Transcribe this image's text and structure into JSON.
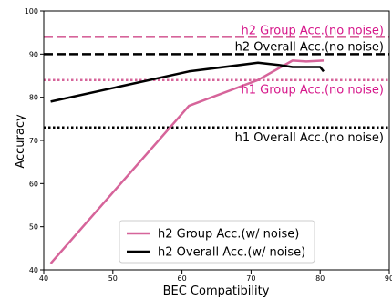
{
  "chart_data": {
    "type": "line",
    "xlabel": "BEC Compatibility",
    "ylabel": "Accuracy",
    "xlim": [
      40,
      90
    ],
    "ylim": [
      40,
      100
    ],
    "xticks": [
      "40",
      "50",
      "60",
      "70",
      "80",
      "90"
    ],
    "yticks": [
      "40",
      "50",
      "60",
      "70",
      "80",
      "90",
      "100"
    ],
    "grid": false,
    "legend_position": "lower-center",
    "series": [
      {
        "name": "h2 Group Acc.(w/ noise)",
        "color": "#d6649a",
        "style": "solid",
        "x": [
          41,
          61,
          71,
          76,
          78,
          80.5
        ],
        "y": [
          41.5,
          78,
          84,
          88.5,
          88.3,
          88.5
        ]
      },
      {
        "name": "h2 Overall Acc.(w/ noise)",
        "color": "#000000",
        "style": "solid",
        "x": [
          41,
          61,
          71,
          74,
          76,
          78,
          80,
          80.5
        ],
        "y": [
          79,
          86,
          88,
          87.5,
          87,
          87,
          87,
          86
        ]
      }
    ],
    "reference_lines": [
      {
        "label": "h2 Group Acc.(no noise)",
        "y": 94,
        "color": "#d6649a",
        "style": "dashed"
      },
      {
        "label": "h2 Overall Acc.(no noise)",
        "y": 90,
        "color": "#000000",
        "style": "dashed"
      },
      {
        "label": "h1 Group Acc.(no noise)",
        "y": 84,
        "color": "#d6649a",
        "style": "dotted"
      },
      {
        "label": "h1 Overall Acc.(no noise)",
        "y": 73,
        "color": "#000000",
        "style": "dotted"
      }
    ],
    "reference_label_colors": [
      "#d6168a",
      "#000000",
      "#d6168a",
      "#000000"
    ]
  }
}
